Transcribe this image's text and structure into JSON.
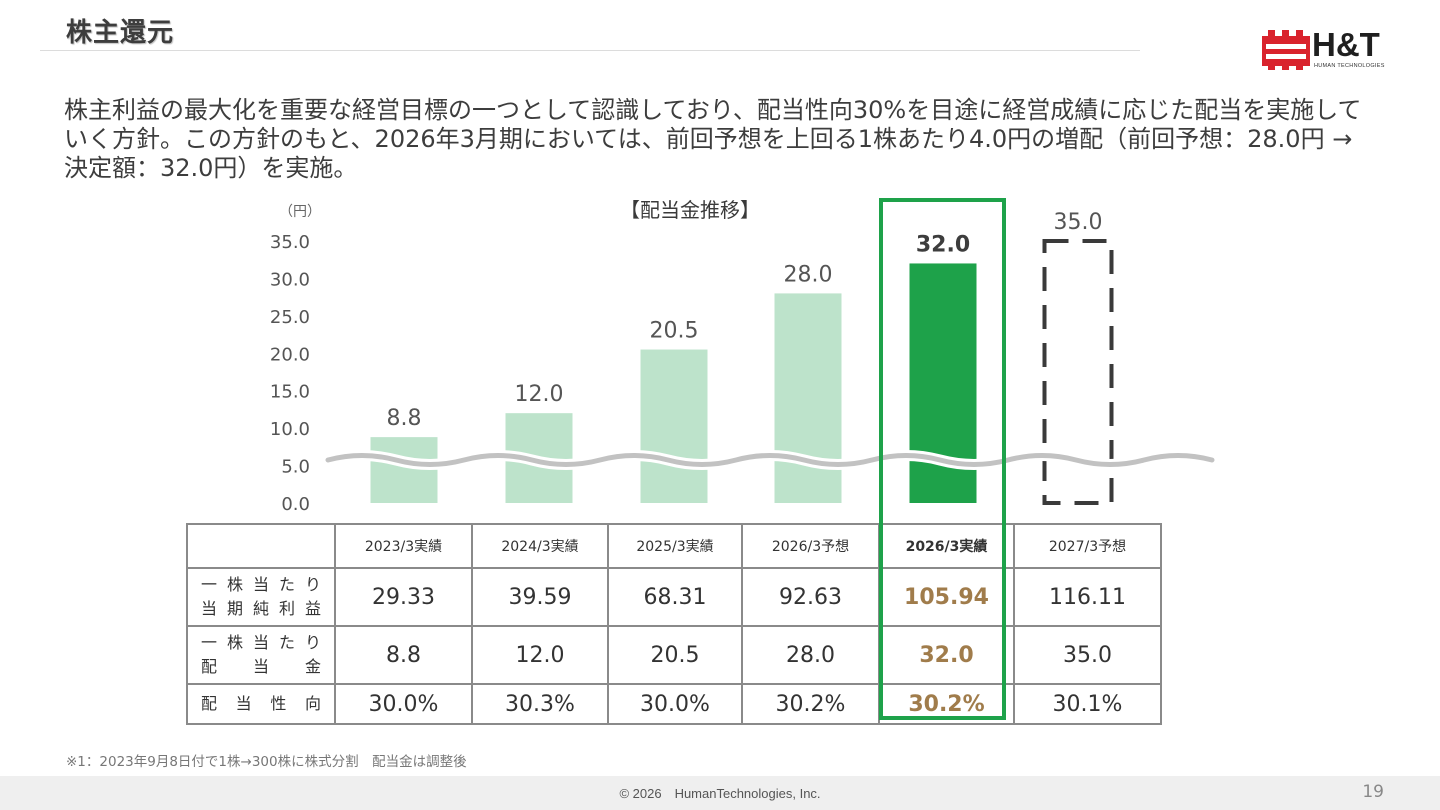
{
  "page": {
    "title": "株主還元",
    "intro": "株主利益の最大化を重要な経営目標の一つとして認識しており、配当性向30%を目途に経営成績に応じた配当を実施していく方針。この方針のもと、2026年3月期においては、前回予想を上回る1株あたり4.0円の増配（前回予想：28.0円 → 決定額：32.0円）を実施。",
    "footnote": "※1：2023年9月8日付で1株→300株に株式分割　配当金は調整後",
    "copyright": "© 2026　HumanTechnologies, Inc.",
    "page_number": "19"
  },
  "logo": {
    "wordmark": "H&T",
    "subtitle": "HUMAN TECHNOLOGIES"
  },
  "colors": {
    "bar_light": "#bde3cb",
    "bar_highlight": "#1ea24a",
    "forecast_outline": "#3a3a3a",
    "highlight_text": "#a07c4b",
    "axis_break": "#c2c2c2"
  },
  "chart_data": {
    "type": "bar",
    "title": "【配当金推移】",
    "ylabel": "（円）",
    "ylim": [
      0,
      35
    ],
    "yticks": [
      "35.0",
      "30.0",
      "25.0",
      "20.0",
      "15.0",
      "10.0",
      "5.0",
      "0.0"
    ],
    "categories": [
      "2023/3実績",
      "2024/3実績",
      "2025/3実績",
      "2026/3予想",
      "2026/3実績",
      "2027/3予想"
    ],
    "values": [
      8.8,
      12.0,
      20.5,
      28.0,
      32.0,
      35.0
    ],
    "labels": [
      "8.8",
      "12.0",
      "20.5",
      "28.0",
      "32.0",
      "35.0"
    ],
    "styles": [
      "light",
      "light",
      "light",
      "light",
      "highlight",
      "forecast"
    ],
    "axis_break": true
  },
  "table": {
    "headers": [
      "2023/3実績",
      "2024/3実績",
      "2025/3実績",
      "2026/3予想",
      "2026/3実績",
      "2027/3予想"
    ],
    "highlight_column": 4,
    "rows": [
      {
        "label_line1": [
          "一",
          "株",
          "当",
          "た",
          "り"
        ],
        "label_line2": [
          "当",
          "期",
          "純",
          "利",
          "益"
        ],
        "values": [
          "29.33",
          "39.59",
          "68.31",
          "92.63",
          "105.94",
          "116.11"
        ]
      },
      {
        "label_line1": [
          "一",
          "株",
          "当",
          "た",
          "り"
        ],
        "label_line2": [
          "配",
          "当",
          "金"
        ],
        "values": [
          "8.8",
          "12.0",
          "20.5",
          "28.0",
          "32.0",
          "35.0"
        ]
      },
      {
        "label_line1": [
          "配",
          "当",
          "性",
          "向"
        ],
        "label_line2": [],
        "values": [
          "30.0%",
          "30.3%",
          "30.0%",
          "30.2%",
          "30.2%",
          "30.1%"
        ]
      }
    ]
  }
}
